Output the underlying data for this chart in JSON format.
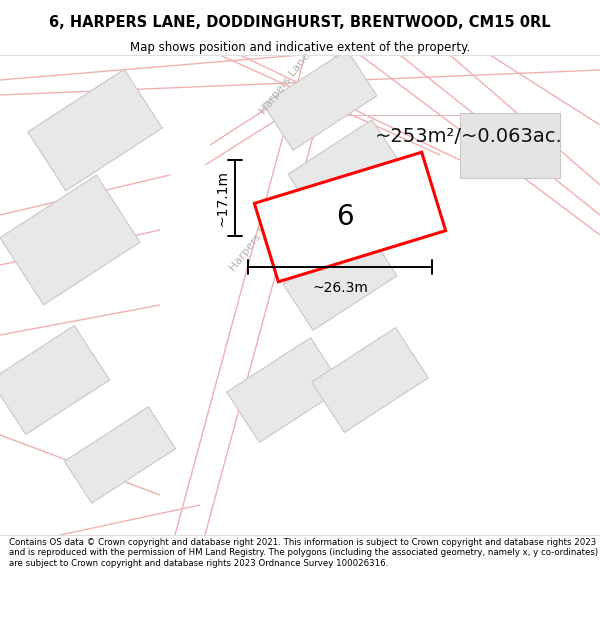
{
  "title": "6, HARPERS LANE, DODDINGHURST, BRENTWOOD, CM15 0RL",
  "subtitle": "Map shows position and indicative extent of the property.",
  "footer": "Contains OS data © Crown copyright and database right 2021. This information is subject to Crown copyright and database rights 2023 and is reproduced with the permission of HM Land Registry. The polygons (including the associated geometry, namely x, y co-ordinates) are subject to Crown copyright and database rights 2023 Ordnance Survey 100026316.",
  "bg_color": "#ffffff",
  "block_color": "#e8e8e8",
  "block_edge": "#c8c8c8",
  "road_color": "#f0b0b0",
  "highlight_color": "#ff0000",
  "label_number": "6",
  "area_text": "~253m²/~0.063ac.",
  "width_label": "~26.3m",
  "height_label": "~17.1m",
  "road_label": "Harpers Lane"
}
